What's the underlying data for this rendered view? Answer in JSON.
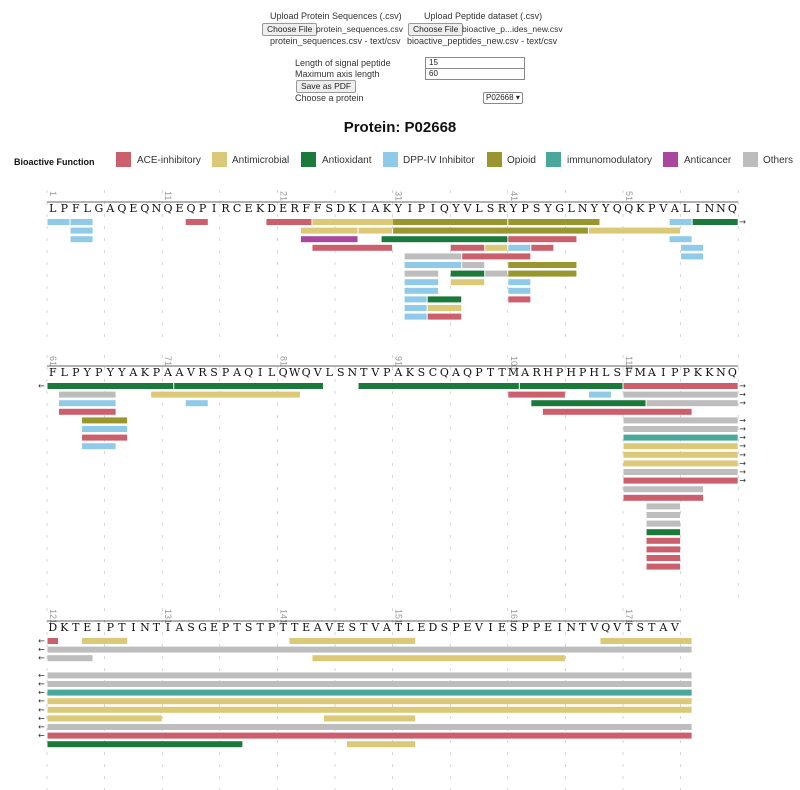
{
  "upload": {
    "protein_label": "Upload Protein Sequences (.csv)",
    "protein_button": "Choose File",
    "protein_file": "protein_sequences.csv",
    "protein_status": "protein_sequences.csv - text/csv",
    "peptide_label": "Upload Peptide dataset (.csv)",
    "peptide_button": "Choose File",
    "peptide_file": "bioactive_p...ides_new.csv",
    "peptide_status": "bioactive_peptides_new.csv - text/csv"
  },
  "controls": {
    "signal_label": "Length of signal peptide",
    "signal_value": "15",
    "axis_label": "Maximum axis length",
    "axis_value": "60",
    "save_label": "Save as PDF",
    "choose_label": "Choose a protein",
    "protein_selected": "P02668"
  },
  "title": "Protein: P02668",
  "legend": {
    "heading": "Bioactive Function",
    "items": [
      {
        "label": "ACE-inhibitory",
        "color": "#cc5f6c"
      },
      {
        "label": "Antimicrobial",
        "color": "#dcc978"
      },
      {
        "label": "Antioxidant",
        "color": "#1b7a3b"
      },
      {
        "label": "DPP-IV Inhibitor",
        "color": "#8fcbe9"
      },
      {
        "label": "Opioid",
        "color": "#9a962f"
      },
      {
        "label": "immunomodulatory",
        "color": "#4aa89b"
      },
      {
        "label": "Anticancer",
        "color": "#a8479c"
      },
      {
        "label": "Others",
        "color": "#bdbdbd"
      }
    ]
  },
  "sequence": "LPFLGAQEQNQEQPIRCEKDERFFSDKIAKYIPIQYVLSRYPSYGLNYYQQKPVALINNQFLPYPYYAKPAAVRSPAQILQWQVLSNTVPAKSCQAQPTTMARHPHPHLSFMAIPPKKNQDKTEIPTINTIASGEPTSTPTTEAVESTVATLEDSPEVIESPPEINTVQVTSTAV",
  "rows": [
    {
      "start": 1,
      "tick_labels": [
        "1",
        "11",
        "21",
        "31",
        "41",
        "51"
      ]
    },
    {
      "start": 61,
      "tick_labels": [
        "61",
        "71",
        "81",
        "91",
        "101",
        "111"
      ]
    },
    {
      "start": 121,
      "tick_labels": [
        "121",
        "131",
        "141",
        "151",
        "161",
        "171"
      ]
    }
  ],
  "peptides": [
    {
      "row": 0,
      "lane": 0,
      "from": 1,
      "to": 2,
      "cat": "DPP-IV Inhibitor"
    },
    {
      "row": 0,
      "lane": 0,
      "from": 3,
      "to": 4,
      "cat": "DPP-IV Inhibitor"
    },
    {
      "row": 0,
      "lane": 1,
      "from": 3,
      "to": 4,
      "cat": "DPP-IV Inhibitor"
    },
    {
      "row": 0,
      "lane": 2,
      "from": 3,
      "to": 4,
      "cat": "DPP-IV Inhibitor"
    },
    {
      "row": 0,
      "lane": 0,
      "from": 13,
      "to": 14,
      "cat": "ACE-inhibitory"
    },
    {
      "row": 0,
      "lane": 0,
      "from": 20,
      "to": 23,
      "cat": "ACE-inhibitory"
    },
    {
      "row": 0,
      "lane": 0,
      "from": 24,
      "to": 31,
      "cat": "Antimicrobial"
    },
    {
      "row": 0,
      "lane": 0,
      "from": 31,
      "to": 40,
      "cat": "Opioid"
    },
    {
      "row": 0,
      "lane": 0,
      "from": 41,
      "to": 48,
      "cat": "Opioid"
    },
    {
      "row": 0,
      "lane": 0,
      "from": 55,
      "to": 56,
      "cat": "DPP-IV Inhibitor"
    },
    {
      "row": 0,
      "lane": 0,
      "from": 57,
      "to": 60,
      "cat": "Antioxidant",
      "cont_right": true
    },
    {
      "row": 0,
      "lane": 1,
      "from": 23,
      "to": 27,
      "cat": "Antimicrobial"
    },
    {
      "row": 0,
      "lane": 1,
      "from": 28,
      "to": 30,
      "cat": "Antimicrobial"
    },
    {
      "row": 0,
      "lane": 1,
      "from": 31,
      "to": 47,
      "cat": "Opioid"
    },
    {
      "row": 0,
      "lane": 1,
      "from": 48,
      "to": 55,
      "cat": "Antimicrobial"
    },
    {
      "row": 0,
      "lane": 2,
      "from": 23,
      "to": 27,
      "cat": "Anticancer"
    },
    {
      "row": 0,
      "lane": 2,
      "from": 30,
      "to": 40,
      "cat": "Antioxidant"
    },
    {
      "row": 0,
      "lane": 2,
      "from": 41,
      "to": 46,
      "cat": "ACE-inhibitory"
    },
    {
      "row": 0,
      "lane": 2,
      "from": 55,
      "to": 56,
      "cat": "DPP-IV Inhibitor"
    },
    {
      "row": 0,
      "lane": 3,
      "from": 24,
      "to": 30,
      "cat": "ACE-inhibitory"
    },
    {
      "row": 0,
      "lane": 3,
      "from": 36,
      "to": 38,
      "cat": "ACE-inhibitory"
    },
    {
      "row": 0,
      "lane": 3,
      "from": 39,
      "to": 40,
      "cat": "Antimicrobial"
    },
    {
      "row": 0,
      "lane": 3,
      "from": 41,
      "to": 42,
      "cat": "DPP-IV Inhibitor"
    },
    {
      "row": 0,
      "lane": 3,
      "from": 43,
      "to": 44,
      "cat": "ACE-inhibitory"
    },
    {
      "row": 0,
      "lane": 3,
      "from": 56,
      "to": 57,
      "cat": "DPP-IV Inhibitor"
    },
    {
      "row": 0,
      "lane": 4,
      "from": 32,
      "to": 36,
      "cat": "Others"
    },
    {
      "row": 0,
      "lane": 4,
      "from": 37,
      "to": 42,
      "cat": "ACE-inhibitory"
    },
    {
      "row": 0,
      "lane": 4,
      "from": 56,
      "to": 57,
      "cat": "DPP-IV Inhibitor"
    },
    {
      "row": 0,
      "lane": 5,
      "from": 32,
      "to": 36,
      "cat": "DPP-IV Inhibitor"
    },
    {
      "row": 0,
      "lane": 5,
      "from": 37,
      "to": 38,
      "cat": "Others"
    },
    {
      "row": 0,
      "lane": 5,
      "from": 41,
      "to": 46,
      "cat": "Opioid"
    },
    {
      "row": 0,
      "lane": 6,
      "from": 32,
      "to": 34,
      "cat": "Others"
    },
    {
      "row": 0,
      "lane": 6,
      "from": 36,
      "to": 38,
      "cat": "Antioxidant"
    },
    {
      "row": 0,
      "lane": 6,
      "from": 39,
      "to": 40,
      "cat": "Others"
    },
    {
      "row": 0,
      "lane": 6,
      "from": 41,
      "to": 46,
      "cat": "Opioid"
    },
    {
      "row": 0,
      "lane": 7,
      "from": 32,
      "to": 34,
      "cat": "DPP-IV Inhibitor"
    },
    {
      "row": 0,
      "lane": 7,
      "from": 36,
      "to": 38,
      "cat": "Antimicrobial"
    },
    {
      "row": 0,
      "lane": 7,
      "from": 41,
      "to": 42,
      "cat": "DPP-IV Inhibitor"
    },
    {
      "row": 0,
      "lane": 8,
      "from": 32,
      "to": 34,
      "cat": "DPP-IV Inhibitor"
    },
    {
      "row": 0,
      "lane": 8,
      "from": 41,
      "to": 42,
      "cat": "DPP-IV Inhibitor"
    },
    {
      "row": 0,
      "lane": 9,
      "from": 32,
      "to": 33,
      "cat": "DPP-IV Inhibitor"
    },
    {
      "row": 0,
      "lane": 9,
      "from": 34,
      "to": 36,
      "cat": "Antioxidant"
    },
    {
      "row": 0,
      "lane": 9,
      "from": 41,
      "to": 42,
      "cat": "ACE-inhibitory"
    },
    {
      "row": 0,
      "lane": 10,
      "from": 32,
      "to": 33,
      "cat": "DPP-IV Inhibitor"
    },
    {
      "row": 0,
      "lane": 10,
      "from": 34,
      "to": 36,
      "cat": "Antimicrobial"
    },
    {
      "row": 0,
      "lane": 11,
      "from": 32,
      "to": 33,
      "cat": "DPP-IV Inhibitor"
    },
    {
      "row": 0,
      "lane": 11,
      "from": 34,
      "to": 36,
      "cat": "ACE-inhibitory"
    },
    {
      "row": 1,
      "lane": 0,
      "from": 61,
      "to": 71,
      "cat": "Antioxidant",
      "cont_left": true
    },
    {
      "row": 1,
      "lane": 0,
      "from": 72,
      "to": 84,
      "cat": "Antioxidant"
    },
    {
      "row": 1,
      "lane": 0,
      "from": 88,
      "to": 101,
      "cat": "Antioxidant"
    },
    {
      "row": 1,
      "lane": 0,
      "from": 102,
      "to": 110,
      "cat": "Antioxidant"
    },
    {
      "row": 1,
      "lane": 0,
      "from": 111,
      "to": 120,
      "cat": "ACE-inhibitory",
      "cont_right": true
    },
    {
      "row": 1,
      "lane": 1,
      "from": 62,
      "to": 66,
      "cat": "Others"
    },
    {
      "row": 1,
      "lane": 1,
      "from": 70,
      "to": 82,
      "cat": "Antimicrobial"
    },
    {
      "row": 1,
      "lane": 1,
      "from": 101,
      "to": 105,
      "cat": "ACE-inhibitory"
    },
    {
      "row": 1,
      "lane": 1,
      "from": 108,
      "to": 109,
      "cat": "DPP-IV Inhibitor"
    },
    {
      "row": 1,
      "lane": 1,
      "from": 111,
      "to": 120,
      "cat": "Others",
      "cont_right": true
    },
    {
      "row": 1,
      "lane": 2,
      "from": 62,
      "to": 66,
      "cat": "DPP-IV Inhibitor"
    },
    {
      "row": 1,
      "lane": 2,
      "from": 73,
      "to": 74,
      "cat": "DPP-IV Inhibitor"
    },
    {
      "row": 1,
      "lane": 2,
      "from": 103,
      "to": 112,
      "cat": "Antioxidant"
    },
    {
      "row": 1,
      "lane": 2,
      "from": 113,
      "to": 120,
      "cat": "Others",
      "cont_right": true
    },
    {
      "row": 1,
      "lane": 3,
      "from": 62,
      "to": 66,
      "cat": "ACE-inhibitory"
    },
    {
      "row": 1,
      "lane": 3,
      "from": 104,
      "to": 116,
      "cat": "ACE-inhibitory"
    },
    {
      "row": 1,
      "lane": 4,
      "from": 64,
      "to": 67,
      "cat": "Opioid"
    },
    {
      "row": 1,
      "lane": 4,
      "from": 111,
      "to": 120,
      "cat": "Others",
      "cont_right": true
    },
    {
      "row": 1,
      "lane": 5,
      "from": 64,
      "to": 67,
      "cat": "DPP-IV Inhibitor"
    },
    {
      "row": 1,
      "lane": 5,
      "from": 111,
      "to": 120,
      "cat": "Others",
      "cont_right": true
    },
    {
      "row": 1,
      "lane": 6,
      "from": 64,
      "to": 67,
      "cat": "ACE-inhibitory"
    },
    {
      "row": 1,
      "lane": 6,
      "from": 111,
      "to": 120,
      "cat": "immunomodulatory",
      "cont_right": true
    },
    {
      "row": 1,
      "lane": 7,
      "from": 64,
      "to": 66,
      "cat": "DPP-IV Inhibitor"
    },
    {
      "row": 1,
      "lane": 7,
      "from": 111,
      "to": 120,
      "cat": "Antimicrobial",
      "cont_right": true
    },
    {
      "row": 1,
      "lane": 8,
      "from": 111,
      "to": 120,
      "cat": "Antimicrobial",
      "cont_right": true
    },
    {
      "row": 1,
      "lane": 9,
      "from": 111,
      "to": 120,
      "cat": "Antimicrobial",
      "cont_right": true
    },
    {
      "row": 1,
      "lane": 10,
      "from": 111,
      "to": 120,
      "cat": "Others",
      "cont_right": true
    },
    {
      "row": 1,
      "lane": 11,
      "from": 111,
      "to": 120,
      "cat": "ACE-inhibitory",
      "cont_right": true
    },
    {
      "row": 1,
      "lane": 12,
      "from": 111,
      "to": 117,
      "cat": "Others"
    },
    {
      "row": 1,
      "lane": 13,
      "from": 111,
      "to": 117,
      "cat": "ACE-inhibitory"
    },
    {
      "row": 1,
      "lane": 14,
      "from": 113,
      "to": 115,
      "cat": "Others"
    },
    {
      "row": 1,
      "lane": 15,
      "from": 113,
      "to": 115,
      "cat": "Others"
    },
    {
      "row": 1,
      "lane": 16,
      "from": 113,
      "to": 115,
      "cat": "Others"
    },
    {
      "row": 1,
      "lane": 17,
      "from": 113,
      "to": 115,
      "cat": "Antioxidant"
    },
    {
      "row": 1,
      "lane": 18,
      "from": 113,
      "to": 115,
      "cat": "ACE-inhibitory"
    },
    {
      "row": 1,
      "lane": 19,
      "from": 113,
      "to": 115,
      "cat": "ACE-inhibitory"
    },
    {
      "row": 1,
      "lane": 20,
      "from": 113,
      "to": 115,
      "cat": "ACE-inhibitory"
    },
    {
      "row": 1,
      "lane": 21,
      "from": 113,
      "to": 115,
      "cat": "ACE-inhibitory"
    },
    {
      "row": 2,
      "lane": 0,
      "from": 121,
      "to": 121,
      "cat": "ACE-inhibitory",
      "cont_left": true
    },
    {
      "row": 2,
      "lane": 0,
      "from": 124,
      "to": 127,
      "cat": "Antimicrobial"
    },
    {
      "row": 2,
      "lane": 0,
      "from": 142,
      "to": 152,
      "cat": "Antimicrobial"
    },
    {
      "row": 2,
      "lane": 0,
      "from": 169,
      "to": 176,
      "cat": "Antimicrobial"
    },
    {
      "row": 2,
      "lane": 1,
      "from": 121,
      "to": 176,
      "cat": "Others",
      "cont_left": true
    },
    {
      "row": 2,
      "lane": 2,
      "from": 121,
      "to": 124,
      "cat": "Others",
      "cont_left": true
    },
    {
      "row": 2,
      "lane": 2,
      "from": 144,
      "to": 165,
      "cat": "Antimicrobial"
    },
    {
      "row": 2,
      "lane": 4,
      "from": 121,
      "to": 176,
      "cat": "Others",
      "cont_left": true
    },
    {
      "row": 2,
      "lane": 5,
      "from": 121,
      "to": 176,
      "cat": "Others",
      "cont_left": true
    },
    {
      "row": 2,
      "lane": 6,
      "from": 121,
      "to": 176,
      "cat": "immunomodulatory",
      "cont_left": true
    },
    {
      "row": 2,
      "lane": 7,
      "from": 121,
      "to": 176,
      "cat": "Antimicrobial",
      "cont_left": true
    },
    {
      "row": 2,
      "lane": 8,
      "from": 121,
      "to": 176,
      "cat": "Antimicrobial",
      "cont_left": true
    },
    {
      "row": 2,
      "lane": 9,
      "from": 121,
      "to": 130,
      "cat": "Antimicrobial",
      "cont_left": true
    },
    {
      "row": 2,
      "lane": 9,
      "from": 145,
      "to": 152,
      "cat": "Antimicrobial"
    },
    {
      "row": 2,
      "lane": 10,
      "from": 121,
      "to": 176,
      "cat": "Others",
      "cont_left": true
    },
    {
      "row": 2,
      "lane": 11,
      "from": 121,
      "to": 176,
      "cat": "ACE-inhibitory",
      "cont_left": true
    },
    {
      "row": 2,
      "lane": 12,
      "from": 121,
      "to": 137,
      "cat": "Antioxidant"
    },
    {
      "row": 2,
      "lane": 12,
      "from": 147,
      "to": 152,
      "cat": "Antimicrobial"
    }
  ]
}
